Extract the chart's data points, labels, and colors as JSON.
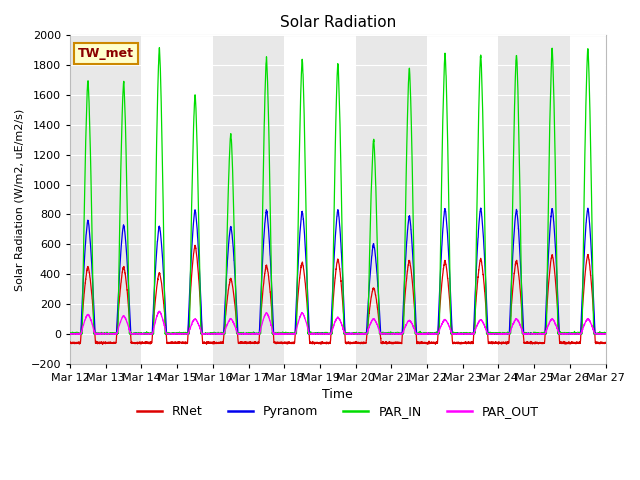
{
  "title": "Solar Radiation",
  "ylabel": "Solar Radiation (W/m2, uE/m2/s)",
  "xlabel": "Time",
  "ylim": [
    -200,
    2000
  ],
  "xtick_labels": [
    "Mar 12",
    "Mar 13",
    "Mar 14",
    "Mar 15",
    "Mar 16",
    "Mar 17",
    "Mar 18",
    "Mar 19",
    "Mar 20",
    "Mar 21",
    "Mar 22",
    "Mar 23",
    "Mar 24",
    "Mar 25",
    "Mar 26",
    "Mar 27"
  ],
  "station_label": "TW_met",
  "legend_labels": [
    "RNet",
    "Pyranom",
    "PAR_IN",
    "PAR_OUT"
  ],
  "line_colors": [
    "#dd0000",
    "#0000ee",
    "#00dd00",
    "#ff00ff"
  ],
  "band_colors": [
    "#e8e8e8",
    "#ffffff"
  ],
  "yticks": [
    -200,
    0,
    200,
    400,
    600,
    800,
    1000,
    1200,
    1400,
    1600,
    1800,
    2000
  ],
  "peaks_rnet": [
    450,
    450,
    410,
    590,
    370,
    460,
    480,
    500,
    310,
    490,
    490,
    500,
    490,
    530
  ],
  "peaks_pyranom": [
    760,
    730,
    720,
    830,
    720,
    830,
    820,
    830,
    600,
    790,
    840,
    840,
    830,
    840
  ],
  "peaks_par_in": [
    1700,
    1690,
    1910,
    1600,
    1340,
    1850,
    1840,
    1810,
    1300,
    1780,
    1880,
    1870,
    1870,
    1910
  ],
  "peaks_par_out": [
    130,
    120,
    150,
    100,
    100,
    140,
    140,
    110,
    100,
    90,
    95,
    95,
    100,
    100
  ],
  "night_rnet": -60,
  "night_pyranom": 0,
  "night_par_in": 0,
  "night_par_out": 0
}
